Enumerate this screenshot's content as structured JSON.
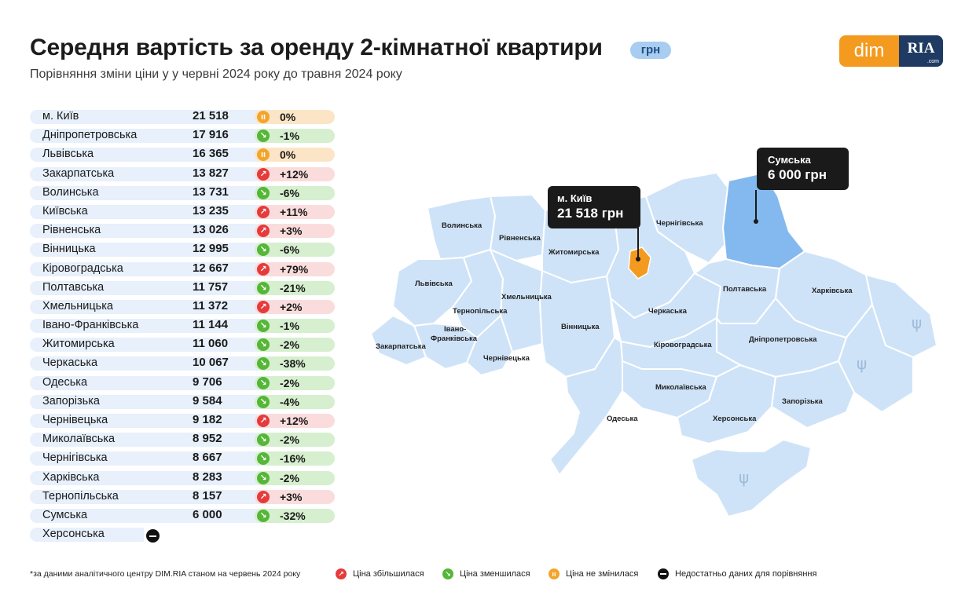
{
  "header": {
    "title": "Середня вартість за оренду 2-кімнатної квартири",
    "unit": "грн",
    "subtitle": "Порівняння зміни ціни у у червні 2024 року до травня 2024 року"
  },
  "logo": {
    "left": "dim",
    "right": "RIA",
    "suffix": ".com"
  },
  "regions": [
    {
      "name": "м. Київ",
      "price": "21 518",
      "change": "0%",
      "trend": "same"
    },
    {
      "name": "Дніпропетровська",
      "price": "17 916",
      "change": "-1%",
      "trend": "down"
    },
    {
      "name": "Львівська",
      "price": "16 365",
      "change": "0%",
      "trend": "same"
    },
    {
      "name": "Закарпатська",
      "price": "13 827",
      "change": "+12%",
      "trend": "up"
    },
    {
      "name": "Волинська",
      "price": "13 731",
      "change": "-6%",
      "trend": "down"
    },
    {
      "name": "Київська",
      "price": "13 235",
      "change": "+11%",
      "trend": "up"
    },
    {
      "name": "Рівненська",
      "price": "13 026",
      "change": "+3%",
      "trend": "up"
    },
    {
      "name": "Вінницька",
      "price": "12 995",
      "change": "-6%",
      "trend": "down"
    },
    {
      "name": "Кіровоградська",
      "price": "12 667",
      "change": "+79%",
      "trend": "up"
    },
    {
      "name": "Полтавська",
      "price": "11 757",
      "change": "-21%",
      "trend": "down"
    },
    {
      "name": "Хмельницька",
      "price": "11 372",
      "change": "+2%",
      "trend": "up"
    },
    {
      "name": "Івано-Франківська",
      "price": "11 144",
      "change": "-1%",
      "trend": "down"
    },
    {
      "name": "Житомирська",
      "price": "11 060",
      "change": "-2%",
      "trend": "down"
    },
    {
      "name": "Черкаська",
      "price": "10 067",
      "change": "-38%",
      "trend": "down"
    },
    {
      "name": "Одеська",
      "price": "9 706",
      "change": "-2%",
      "trend": "down"
    },
    {
      "name": "Запорізька",
      "price": "9 584",
      "change": "-4%",
      "trend": "down"
    },
    {
      "name": "Чернівецька",
      "price": "9 182",
      "change": "+12%",
      "trend": "up"
    },
    {
      "name": "Миколаївська",
      "price": "8 952",
      "change": "-2%",
      "trend": "down"
    },
    {
      "name": "Чернігівська",
      "price": "8 667",
      "change": "-16%",
      "trend": "down"
    },
    {
      "name": "Харківська",
      "price": "8 283",
      "change": "-2%",
      "trend": "down"
    },
    {
      "name": "Тернопільська",
      "price": "8 157",
      "change": "+3%",
      "trend": "up"
    },
    {
      "name": "Сумська",
      "price": "6 000",
      "change": "-32%",
      "trend": "down"
    },
    {
      "name": "Херсонська",
      "price": "",
      "change": "",
      "trend": "nodata"
    }
  ],
  "map": {
    "labels": {
      "volyn": "Волинська",
      "rivne": "Рівненська",
      "zhytomyr": "Житомирська",
      "chernihiv": "Чернігівська",
      "lviv": "Львівська",
      "ternopil": "Тернопільська",
      "khmelnytskyi": "Хмельницька",
      "ivano_frankivsk_1": "Івано-",
      "ivano_frankivsk_2": "Франківська",
      "zakarpattia": "Закарпатська",
      "chernivtsi": "Чернівецька",
      "vinnytsia": "Вінницька",
      "cherkasy": "Черкаська",
      "kirovohrad": "Кіровоградська",
      "poltava": "Полтавська",
      "kharkiv": "Харківська",
      "dnipro": "Дніпропетровська",
      "mykolaiv": "Миколаївська",
      "odesa": "Одеська",
      "kherson": "Херсонська",
      "zaporizhzhia": "Запорізька"
    },
    "callout_kyiv": {
      "name": "м. Київ",
      "value": "21 518 грн"
    },
    "callout_sumy": {
      "name": "Сумська",
      "value": "6 000 грн"
    },
    "colors": {
      "region": "#cfe3f8",
      "highlight": "#83b9ee",
      "kyiv": "#f39a1f"
    }
  },
  "footer": {
    "note": "*за даними аналітичного центру DIM.RIA станом на червень 2024 року",
    "legend_up": "Ціна збільшилася",
    "legend_down": "Ціна зменшилася",
    "legend_same": "Ціна не змінилася",
    "legend_nodata": "Недостатньо даних для порівняння"
  }
}
